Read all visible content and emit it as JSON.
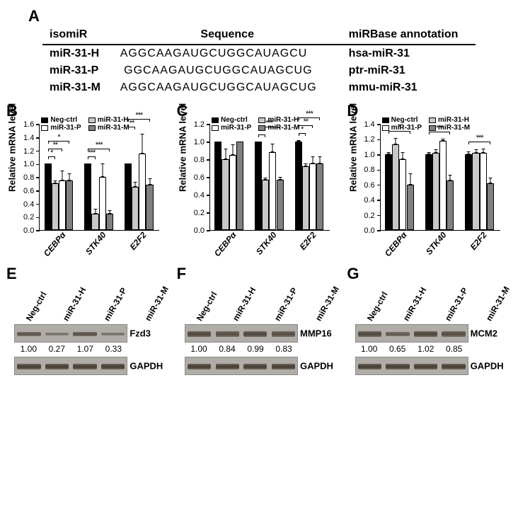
{
  "colors": {
    "neg": "#000000",
    "h": "#c8c8c8",
    "p": "#ffffff",
    "m": "#808080"
  },
  "panelA": {
    "label": "A",
    "headers": [
      "isomiR",
      "Sequence",
      "miRBase annotation"
    ],
    "rows": [
      {
        "name": "miR-31-H",
        "seq": "AGGCAAGAUGCUGGCAUAGCU",
        "pad": "",
        "ann": "hsa-miR-31"
      },
      {
        "name": "miR-31-P",
        "seq": "GGCAAGAUGCUGGCAUAGCUG",
        "pad": " ",
        "ann": "ptr-miR-31"
      },
      {
        "name": "miR-31-M",
        "seq": "AGGCAAGAUGCUGGCAUAGCUG",
        "pad": "",
        "ann": "mmu-miR-31"
      }
    ]
  },
  "legend": {
    "items": [
      {
        "key": "neg",
        "label": "Neg-ctrl"
      },
      {
        "key": "h",
        "label": "miR-31-H"
      },
      {
        "key": "p",
        "label": "miR-31-P"
      },
      {
        "key": "m",
        "label": "miR-31-M"
      }
    ]
  },
  "charts": {
    "ylabel": "Relative mRNA level",
    "cats": [
      "CEBPα",
      "STK40",
      "E2F2"
    ],
    "chartParams": {
      "tick_fontsize": 11,
      "cat_fontsize": 12,
      "ylabel_fontsize": 13,
      "bar_border": "#000000"
    },
    "B": {
      "label": "B",
      "ymax": 1.6,
      "ytick_step": 0.2,
      "groups": [
        {
          "vals": [
            1.0,
            0.7,
            0.75,
            0.75
          ],
          "errs": [
            0.0,
            0.05,
            0.15,
            0.1
          ],
          "sig": [
            {
              "from": 0,
              "to": 1,
              "level": 0,
              "stars": "*"
            },
            {
              "from": 0,
              "to": 2,
              "level": 1,
              "stars": "**"
            },
            {
              "from": 0,
              "to": 3,
              "level": 2,
              "stars": "*"
            }
          ]
        },
        {
          "vals": [
            1.0,
            0.25,
            0.8,
            0.25
          ],
          "errs": [
            0.0,
            0.07,
            0.2,
            0.05
          ],
          "sig": [
            {
              "from": 0,
              "to": 1,
              "level": 0,
              "stars": "***"
            },
            {
              "from": 0,
              "to": 3,
              "level": 1,
              "stars": "***"
            }
          ]
        },
        {
          "vals": [
            1.0,
            0.65,
            1.15,
            0.68
          ],
          "errs": [
            0.0,
            0.08,
            0.3,
            0.1
          ],
          "sig": [
            {
              "from": 0,
              "to": 1,
              "level": 0,
              "stars": "**"
            },
            {
              "from": 0,
              "to": 3,
              "level": 1,
              "stars": "***"
            }
          ]
        }
      ]
    },
    "C": {
      "label": "C",
      "ymax": 1.2,
      "ytick_step": 0.2,
      "groups": [
        {
          "vals": [
            1.0,
            0.8,
            0.85,
            1.0
          ],
          "errs": [
            0.0,
            0.12,
            0.12,
            0.0
          ],
          "sig": []
        },
        {
          "vals": [
            1.0,
            0.57,
            0.88,
            0.57
          ],
          "errs": [
            0.0,
            0.02,
            0.1,
            0.03
          ],
          "sig": [
            {
              "from": 0,
              "to": 1,
              "level": 0,
              "stars": "***"
            },
            {
              "from": 0,
              "to": 3,
              "level": 1,
              "stars": "***"
            }
          ]
        },
        {
          "vals": [
            1.0,
            0.72,
            0.75,
            0.75
          ],
          "errs": [
            0.02,
            0.03,
            0.08,
            0.08
          ],
          "sig": [
            {
              "from": 0,
              "to": 1,
              "level": 0,
              "stars": "*"
            },
            {
              "from": 0,
              "to": 2,
              "level": 1,
              "stars": "**"
            },
            {
              "from": 0,
              "to": 3,
              "level": 2,
              "stars": "***"
            }
          ]
        }
      ]
    },
    "D": {
      "label": "D",
      "ymax": 1.4,
      "ytick_step": 0.2,
      "groups": [
        {
          "vals": [
            1.0,
            1.13,
            0.93,
            0.6
          ],
          "errs": [
            0.03,
            0.08,
            0.1,
            0.15
          ],
          "sig": [
            {
              "from": 0,
              "to": 3,
              "level": 0,
              "stars": "*"
            }
          ]
        },
        {
          "vals": [
            1.0,
            1.02,
            1.18,
            0.65
          ],
          "errs": [
            0.03,
            0.04,
            0.02,
            0.08
          ],
          "sig": [
            {
              "from": 0,
              "to": 3,
              "level": 0,
              "stars": "***"
            }
          ]
        },
        {
          "vals": [
            1.0,
            1.02,
            1.02,
            0.62
          ],
          "errs": [
            0.04,
            0.04,
            0.05,
            0.07
          ],
          "sig": [
            {
              "from": 0,
              "to": 3,
              "level": 0,
              "stars": "***"
            }
          ]
        }
      ]
    }
  },
  "westerns": {
    "laneLabels": [
      "Neg-ctrl",
      "miR-31-H",
      "miR-31-P",
      "miR-31-M"
    ],
    "gapdh": "GAPDH",
    "E": {
      "label": "E",
      "target": "Fzd3",
      "intensities": [
        0.6,
        0.2,
        0.65,
        0.22
      ],
      "quant": [
        "1.00",
        "0.27",
        "1.07",
        "0.33"
      ]
    },
    "F": {
      "label": "F",
      "target": "MMP16",
      "intensities": [
        0.8,
        0.7,
        0.82,
        0.7
      ],
      "quant": [
        "1.00",
        "0.84",
        "0.99",
        "0.83"
      ]
    },
    "G": {
      "label": "G",
      "target": "MCM2",
      "intensities": [
        0.8,
        0.55,
        0.82,
        0.7
      ],
      "quant": [
        "1.00",
        "0.65",
        "1.02",
        "0.85"
      ]
    }
  }
}
